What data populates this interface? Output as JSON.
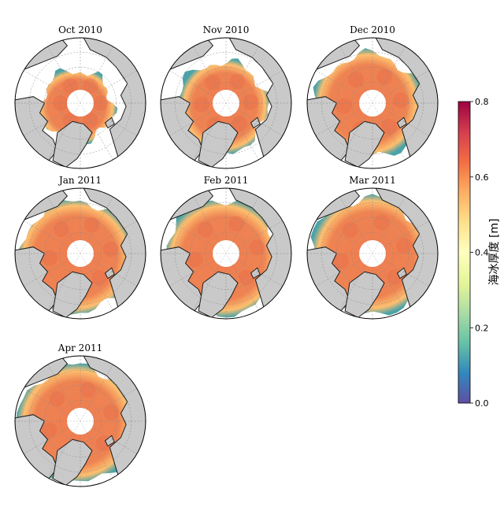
{
  "figure": {
    "panels": [
      {
        "title": "Oct 2010",
        "extent": 0.55
      },
      {
        "title": "Nov 2010",
        "extent": 0.68
      },
      {
        "title": "Dec 2010",
        "extent": 0.8
      },
      {
        "title": "Jan 2011",
        "extent": 0.86
      },
      {
        "title": "Feb 2011",
        "extent": 0.88
      },
      {
        "title": "Mar 2011",
        "extent": 0.9
      },
      {
        "title": "Apr 2011",
        "extent": 0.9
      }
    ],
    "colors": {
      "land": "#c9c9c9",
      "ocean": "#ffffff",
      "coast": "#1a1a1a",
      "ice_main": "#ee7e4e",
      "ice_high": "#e56748",
      "ice_mid": "#fdbf6f",
      "ice_low": "#4aa3a8"
    }
  },
  "colorbar": {
    "label": "海冰厚度 [m]",
    "ticks": [
      "0.0",
      "0.2",
      "0.4",
      "0.6",
      "0.8"
    ],
    "range": [
      0.0,
      0.8
    ],
    "colormap": [
      "#5e4fa2",
      "#3288bd",
      "#66c2a5",
      "#abdda4",
      "#e6f598",
      "#ffffbf",
      "#fee08b",
      "#fdae61",
      "#f46d43",
      "#d53e4f",
      "#9e0142"
    ]
  }
}
